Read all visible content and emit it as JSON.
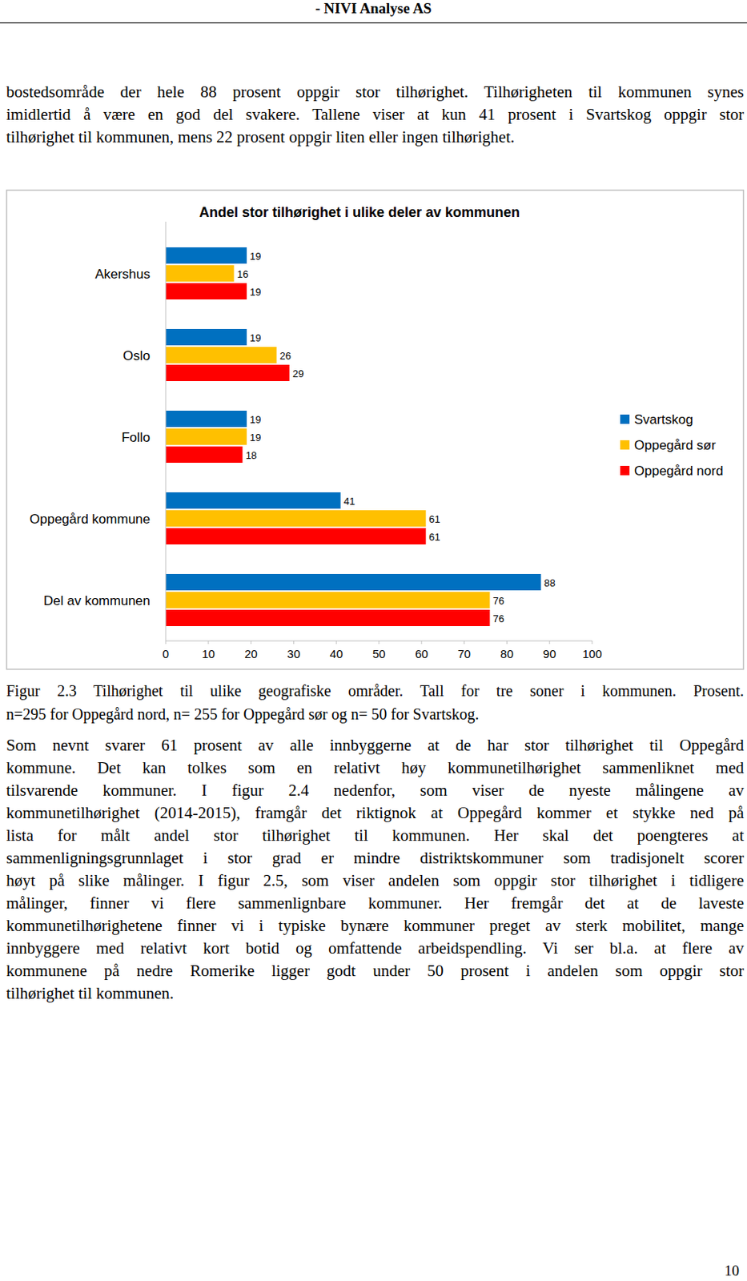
{
  "header": "- NIVI Analyse AS",
  "intro": {
    "lines": [
      "bostedsområde der hele 88 prosent oppgir stor tilhørighet. Tilhørigheten til kommunen synes",
      "imidlertid å være en god del svakere. Tallene viser at kun 41 prosent i Svartskog oppgir stor",
      "tilhørighet til kommunen, mens 22 prosent oppgir liten eller ingen tilhørighet."
    ]
  },
  "chart_data": {
    "type": "bar",
    "orientation": "horizontal",
    "title": "Andel stor tilhørighet i ulike deler av kommunen",
    "categories": [
      "Akershus",
      "Oslo",
      "Follo",
      "Oppegård kommune",
      "Del av kommunen"
    ],
    "series": [
      {
        "name": "Svartskog",
        "color": "#0070c0",
        "values": [
          19,
          19,
          19,
          41,
          88
        ]
      },
      {
        "name": "Oppegård sør",
        "color": "#ffc000",
        "values": [
          16,
          26,
          19,
          61,
          76
        ]
      },
      {
        "name": "Oppegård nord",
        "color": "#ff0000",
        "values": [
          19,
          29,
          18,
          61,
          76
        ]
      }
    ],
    "xlim": [
      0,
      100
    ],
    "xticks": [
      0,
      10,
      20,
      30,
      40,
      50,
      60,
      70,
      80,
      90,
      100
    ],
    "grid": false,
    "legend": "right",
    "data_labels": true
  },
  "caption": {
    "lines": [
      "Figur 2.3 Tilhørighet til ulike geografiske områder. Tall for tre soner i kommunen. Prosent.",
      "n=295 for Oppegård nord, n= 255 for Oppegård sør og n= 50 for Svartskog."
    ]
  },
  "body": {
    "lines": [
      "Som nevnt svarer 61 prosent av alle innbyggerne at de har stor tilhørighet til Oppegård",
      "kommune. Det kan tolkes som en relativt høy kommunetilhørighet sammenliknet med",
      "tilsvarende kommuner. I figur 2.4 nedenfor, som viser de nyeste målingene av",
      "kommunetilhørighet (2014-2015), framgår det riktignok at Oppegård kommer et stykke ned på",
      "lista for målt andel stor tilhørighet til kommunen. Her skal det poengteres at",
      "sammenligningsgrunnlaget i stor grad er mindre distriktskommuner som tradisjonelt scorer",
      "høyt på slike målinger. I figur 2.5, som viser andelen som oppgir stor tilhørighet i tidligere",
      "målinger, finner vi flere sammenlignbare kommuner. Her fremgår det at de laveste",
      "kommunetilhørighetene finner vi i typiske bynære kommuner preget av sterk mobilitet, mange",
      "innbyggere med relativt kort botid og omfattende arbeidspendling. Vi ser bl.a. at flere av",
      "kommunene på nedre Romerike ligger godt under 50 prosent i andelen som oppgir stor",
      "tilhørighet til kommunen."
    ]
  },
  "page_number": "10"
}
